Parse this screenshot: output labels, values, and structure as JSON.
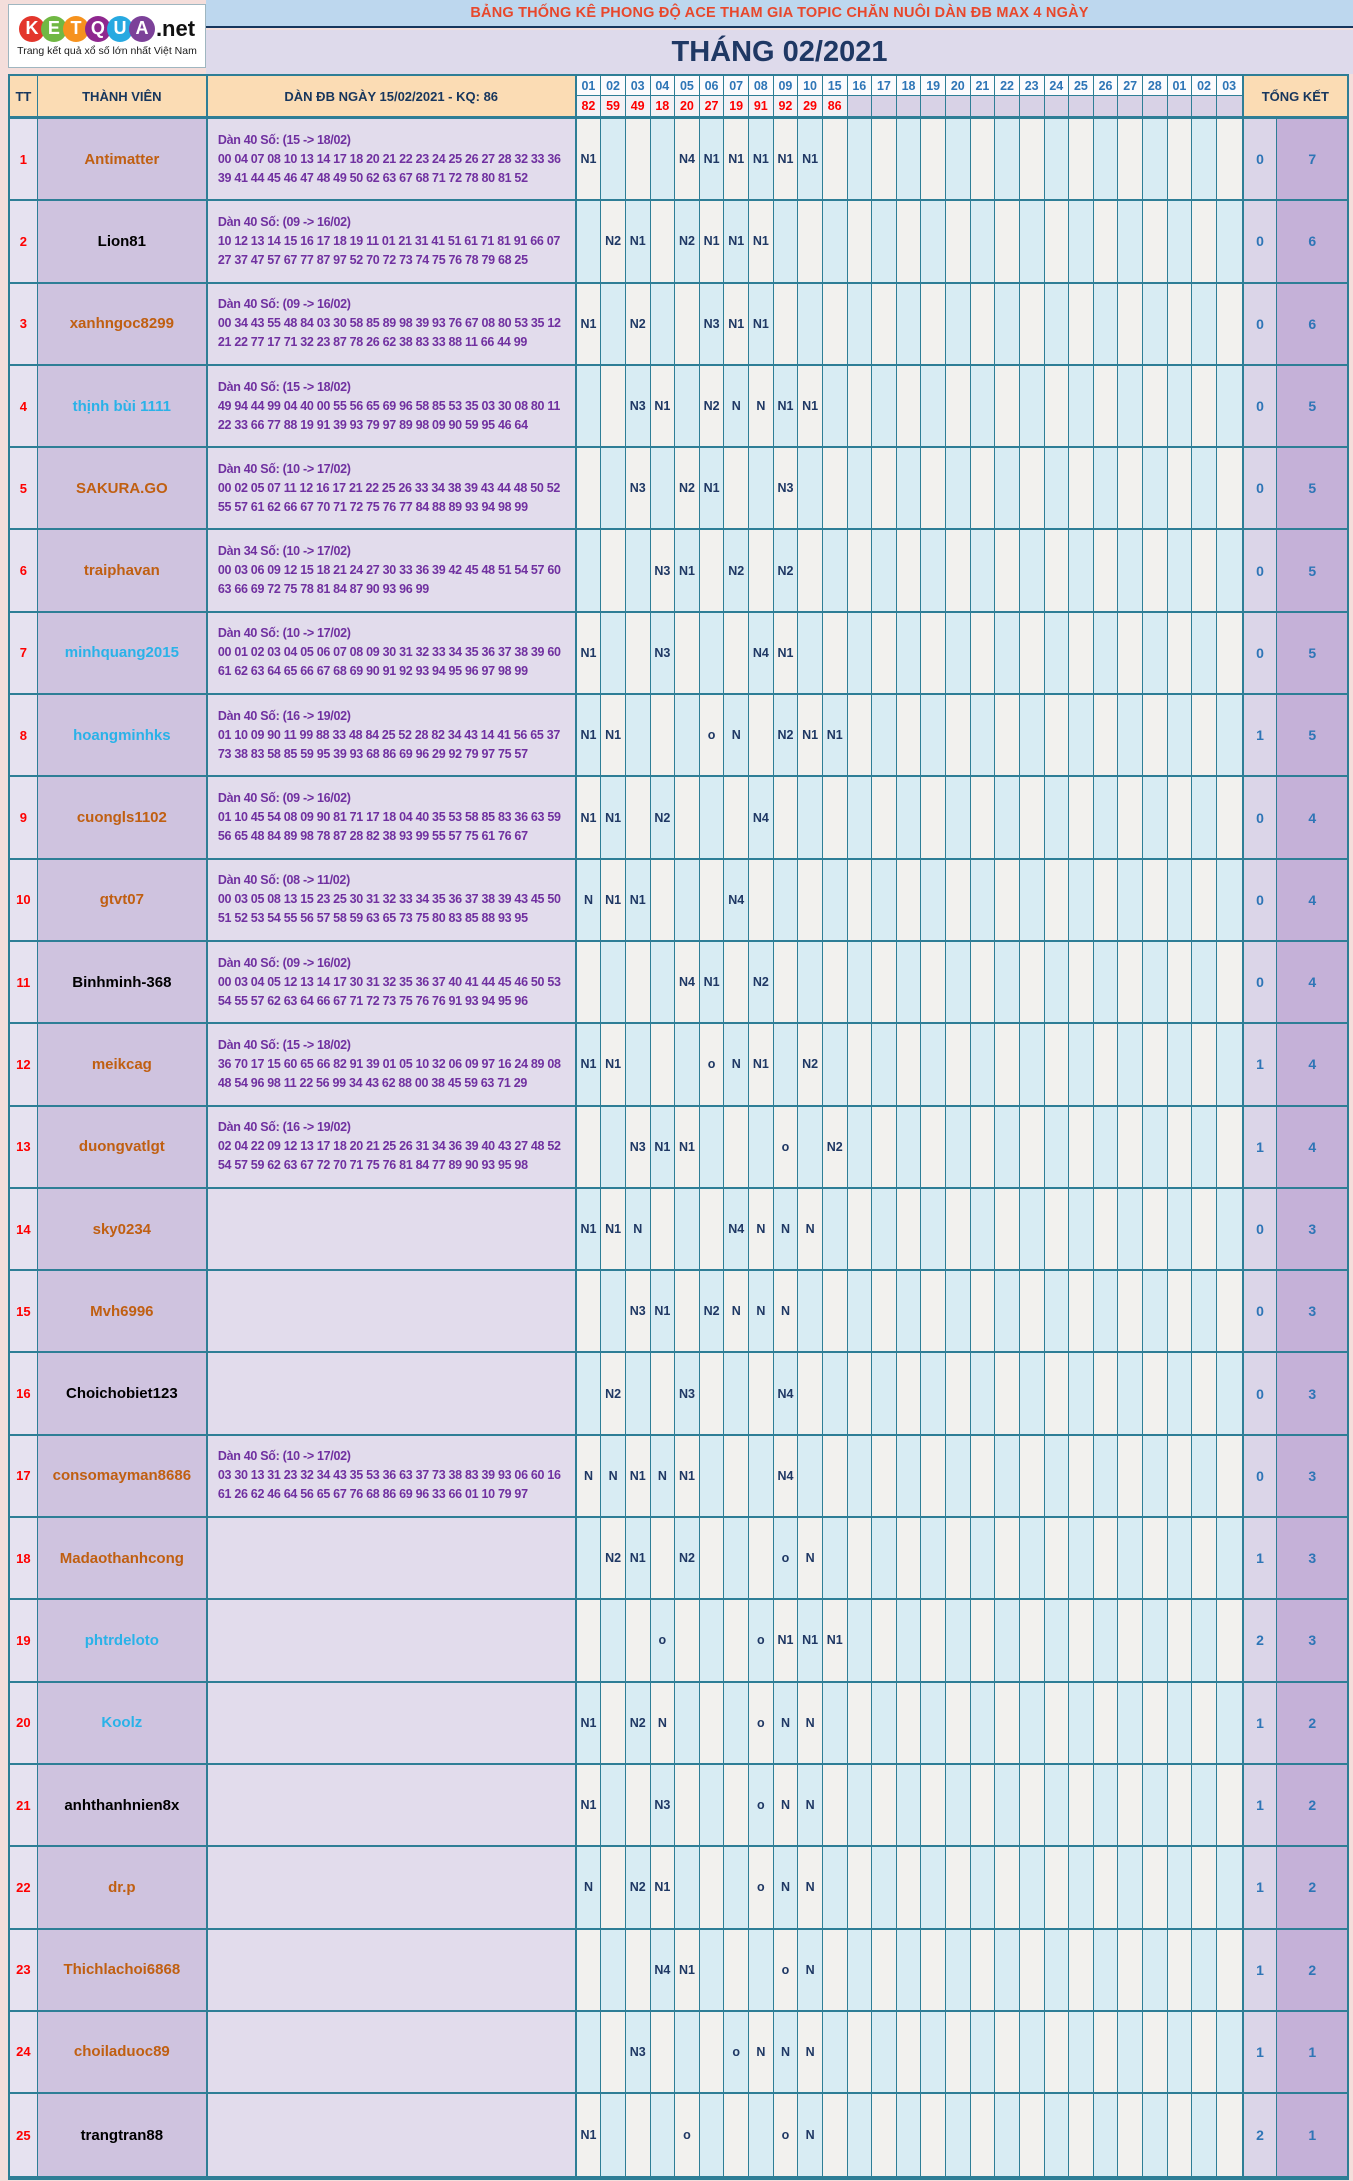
{
  "logo": {
    "letters": [
      {
        "ch": "K",
        "color": "#e3362c"
      },
      {
        "ch": "E",
        "color": "#70b843"
      },
      {
        "ch": "T",
        "color": "#f6921e"
      },
      {
        "ch": "Q",
        "color": "#8f278f"
      },
      {
        "ch": "U",
        "color": "#27a9e1"
      },
      {
        "ch": "A",
        "color": "#7c4199"
      }
    ],
    "suffix": ".net",
    "tagline": "Trang kết quả xổ số lớn nhất Việt Nam"
  },
  "banner": {
    "title": "BẢNG THỐNG KÊ PHONG ĐỘ ACE THAM GIA TOPIC CHĂN NUÔI DÀN ĐB MAX 4 NGÀY",
    "month": "THÁNG 02/2021"
  },
  "colors": {
    "accent_teal": "#2e7e96",
    "banner_blue": "#bdd7ee",
    "banner_title_red": "#e8472b",
    "navy": "#1f3864",
    "peach_header": "#fbdcb4",
    "purple_text": "#7030a0",
    "result_red": "#fe0000",
    "value_blue": "#2e75b6"
  },
  "table": {
    "headers": {
      "tt": "TT",
      "member": "THÀNH VIÊN",
      "dan": "DÀN ĐB NGÀY 15/02/2021 - KQ: 86",
      "total": "TỔNG KẾT"
    },
    "columns": [
      "01",
      "02",
      "03",
      "04",
      "05",
      "06",
      "07",
      "08",
      "09",
      "10",
      "15",
      "16",
      "17",
      "18",
      "19",
      "20",
      "21",
      "22",
      "23",
      "24",
      "25",
      "26",
      "27",
      "28",
      "01",
      "02",
      "03"
    ],
    "results": [
      "82",
      "59",
      "49",
      "18",
      "20",
      "27",
      "19",
      "91",
      "92",
      "29",
      "86",
      "",
      "",
      "",
      "",
      "",
      "",
      "",
      "",
      "",
      "",
      "",
      "",
      "",
      "",
      "",
      ""
    ],
    "rows": [
      {
        "tt": "1",
        "name": "Antimatter",
        "name_color": "orange",
        "dan_title": "Dàn 40 Số: (15 -> 18/02)",
        "dan_line1": "00 04 07 08 10 13 14 17 18 20 21 22 23 24 25 26 27 28 32 33 36",
        "dan_line2": "39 41 44 45 46 47 48 49 50 62 63 67 68 71 72 78 80 81 52",
        "cells": {
          "0": "N1",
          "4": "N4",
          "5": "N1",
          "6": "N1",
          "7": "N1",
          "8": "N1",
          "9": "N1"
        },
        "sum_miss": "0",
        "sum_win": "7"
      },
      {
        "tt": "2",
        "name": "Lion81",
        "name_color": "black",
        "dan_title": "Dàn 40 Số: (09 -> 16/02)",
        "dan_line1": "10 12 13 14 15 16 17 18 19 11 01 21 31 41 51 61 71 81 91 66 07",
        "dan_line2": "27 37 47 57 67 77 87 97 52 70 72 73 74 75 76 78 79 68 25",
        "cells": {
          "1": "N2",
          "2": "N1",
          "4": "N2",
          "5": "N1",
          "6": "N1",
          "7": "N1"
        },
        "sum_miss": "0",
        "sum_win": "6"
      },
      {
        "tt": "3",
        "name": "xanhngoc8299",
        "name_color": "orange",
        "dan_title": "Dàn 40 Số: (09 -> 16/02)",
        "dan_line1": "00 34 43 55 48 84 03 30 58 85 89 98 39 93 76 67 08 80 53 35 12",
        "dan_line2": "21 22 77 17 71 32 23 87 78 26 62 38 83 33 88 11 66 44 99",
        "cells": {
          "0": "N1",
          "2": "N2",
          "5": "N3",
          "6": "N1",
          "7": "N1"
        },
        "sum_miss": "0",
        "sum_win": "6"
      },
      {
        "tt": "4",
        "name": "thịnh bùi 1111",
        "name_color": "cyan",
        "dan_title": "Dàn 40 Số: (15 -> 18/02)",
        "dan_line1": "49 94 44 99 04 40 00 55 56 65 69 96 58 85 53 35 03 30 08 80 11",
        "dan_line2": "22 33 66 77 88 19 91 39 93 79 97 89 98 09 90 59 95 46 64",
        "cells": {
          "2": "N3",
          "3": "N1",
          "5": "N2",
          "6": "N",
          "7": "N",
          "8": "N1",
          "9": "N1"
        },
        "sum_miss": "0",
        "sum_win": "5"
      },
      {
        "tt": "5",
        "name": "SAKURA.GO",
        "name_color": "orange",
        "dan_title": "Dàn 40 Số: (10 -> 17/02)",
        "dan_line1": "00 02 05 07 11 12 16 17 21 22 25 26 33 34 38 39 43 44 48 50 52",
        "dan_line2": "55 57 61 62 66 67 70 71 72 75 76 77 84 88 89 93 94 98 99",
        "cells": {
          "2": "N3",
          "4": "N2",
          "5": "N1",
          "8": "N3"
        },
        "sum_miss": "0",
        "sum_win": "5"
      },
      {
        "tt": "6",
        "name": "traiphavan",
        "name_color": "orange",
        "dan_title": "Dàn 34 Số: (10 -> 17/02)",
        "dan_line1": "00 03 06 09 12 15 18 21 24 27 30 33 36 39 42 45 48 51 54 57 60",
        "dan_line2": "63 66 69 72 75 78 81 84 87 90 93 96 99",
        "cells": {
          "3": "N3",
          "4": "N1",
          "6": "N2",
          "8": "N2"
        },
        "sum_miss": "0",
        "sum_win": "5"
      },
      {
        "tt": "7",
        "name": "minhquang2015",
        "name_color": "cyan",
        "dan_title": "Dàn 40 Số: (10 -> 17/02)",
        "dan_line1": "00 01 02 03 04 05 06 07 08 09 30 31 32 33 34 35 36 37 38 39 60",
        "dan_line2": "61 62 63 64 65 66 67 68 69 90 91 92 93 94 95 96 97 98 99",
        "cells": {
          "0": "N1",
          "3": "N3",
          "7": "N4",
          "8": "N1"
        },
        "sum_miss": "0",
        "sum_win": "5"
      },
      {
        "tt": "8",
        "name": "hoangminhks",
        "name_color": "cyan",
        "dan_title": "Dàn 40 Số: (16 -> 19/02)",
        "dan_line1": "01 10 09 90 11 99 88 33 48 84 25 52 28 82 34 43 14 41 56 65 37",
        "dan_line2": "73 38 83 58 85 59 95 39 93 68 86 69 96 29 92 79 97 75 57",
        "cells": {
          "0": "N1",
          "1": "N1",
          "5": "o",
          "6": "N",
          "8": "N2",
          "9": "N1",
          "10": "N1"
        },
        "sum_miss": "1",
        "sum_win": "5"
      },
      {
        "tt": "9",
        "name": "cuongls1102",
        "name_color": "orange",
        "dan_title": "Dàn 40 Số: (09 -> 16/02)",
        "dan_line1": "01 10 45 54 08 09 90 81 71 17 18 04 40 35 53 58 85 83 36 63 59",
        "dan_line2": "56 65 48 84 89 98 78 87 28 82 38 93 99 55 57 75 61 76 67",
        "cells": {
          "0": "N1",
          "1": "N1",
          "3": "N2",
          "7": "N4"
        },
        "sum_miss": "0",
        "sum_win": "4"
      },
      {
        "tt": "10",
        "name": "gtvt07",
        "name_color": "orange",
        "dan_title": "Dàn 40 Số: (08 -> 11/02)",
        "dan_line1": "00 03 05 08 13 15 23 25 30 31 32 33 34 35 36 37 38 39 43 45 50",
        "dan_line2": "51 52 53 54 55 56 57 58 59 63 65 73 75 80 83 85 88 93 95",
        "cells": {
          "0": "N",
          "1": "N1",
          "2": "N1",
          "6": "N4"
        },
        "sum_miss": "0",
        "sum_win": "4"
      },
      {
        "tt": "11",
        "name": "Binhminh-368",
        "name_color": "black",
        "dan_title": "Dàn 40 Số: (09 -> 16/02)",
        "dan_line1": "00 03 04 05 12 13 14 17 30 31 32 35 36 37 40 41 44 45 46 50 53",
        "dan_line2": "54 55 57 62 63 64 66 67 71 72 73 75 76 76 91 93 94 95 96",
        "cells": {
          "4": "N4",
          "5": "N1",
          "7": "N2"
        },
        "sum_miss": "0",
        "sum_win": "4"
      },
      {
        "tt": "12",
        "name": "meikcag",
        "name_color": "orange",
        "dan_title": "Dàn 40 Số: (15 -> 18/02)",
        "dan_line1": "36 70 17 15 60 65 66 82 91 39 01 05 10 32 06 09 97 16 24 89 08",
        "dan_line2": "48 54 96 98 11 22 56 99 34 43 62 88 00 38 45 59 63 71 29",
        "cells": {
          "0": "N1",
          "1": "N1",
          "5": "o",
          "6": "N",
          "7": "N1",
          "9": "N2"
        },
        "sum_miss": "1",
        "sum_win": "4"
      },
      {
        "tt": "13",
        "name": "duongvatlgt",
        "name_color": "orange",
        "dan_title": "Dàn 40 Số: (16 -> 19/02)",
        "dan_line1": "02 04 22 09 12 13 17 18 20 21 25 26 31 34 36 39 40 43 27 48 52",
        "dan_line2": "54 57 59 62 63 67 72 70 71 75 76 81 84 77 89 90 93 95 98",
        "cells": {
          "2": "N3",
          "3": "N1",
          "4": "N1",
          "8": "o",
          "10": "N2"
        },
        "sum_miss": "1",
        "sum_win": "4"
      },
      {
        "tt": "14",
        "name": "sky0234",
        "name_color": "orange",
        "dan_title": "",
        "dan_line1": "",
        "dan_line2": "",
        "cells": {
          "0": "N1",
          "1": "N1",
          "2": "N",
          "6": "N4",
          "7": "N",
          "8": "N",
          "9": "N"
        },
        "sum_miss": "0",
        "sum_win": "3"
      },
      {
        "tt": "15",
        "name": "Mvh6996",
        "name_color": "orange",
        "dan_title": "",
        "dan_line1": "",
        "dan_line2": "",
        "cells": {
          "2": "N3",
          "3": "N1",
          "5": "N2",
          "6": "N",
          "7": "N",
          "8": "N"
        },
        "sum_miss": "0",
        "sum_win": "3"
      },
      {
        "tt": "16",
        "name": "Choichobiet123",
        "name_color": "black",
        "dan_title": "",
        "dan_line1": "",
        "dan_line2": "",
        "cells": {
          "1": "N2",
          "4": "N3",
          "8": "N4"
        },
        "sum_miss": "0",
        "sum_win": "3"
      },
      {
        "tt": "17",
        "name": "consomayman8686",
        "name_color": "orange",
        "dan_title": "Dàn 40 Số: (10 -> 17/02)",
        "dan_line1": "03 30 13 31 23 32 34 43 35 53 36 63 37 73 38 83 39 93 06 60 16",
        "dan_line2": "61 26 62 46 64 56 65 67 76 68 86 69 96 33 66 01 10 79 97",
        "cells": {
          "0": "N",
          "1": "N",
          "2": "N1",
          "3": "N",
          "4": "N1",
          "8": "N4"
        },
        "sum_miss": "0",
        "sum_win": "3"
      },
      {
        "tt": "18",
        "name": "Madaothanhcong",
        "name_color": "orange",
        "dan_title": "",
        "dan_line1": "",
        "dan_line2": "",
        "cells": {
          "1": "N2",
          "2": "N1",
          "4": "N2",
          "8": "o",
          "9": "N"
        },
        "sum_miss": "1",
        "sum_win": "3"
      },
      {
        "tt": "19",
        "name": "phtrdeloto",
        "name_color": "cyan",
        "dan_title": "",
        "dan_line1": "",
        "dan_line2": "",
        "cells": {
          "3": "o",
          "7": "o",
          "8": "N1",
          "9": "N1",
          "10": "N1"
        },
        "sum_miss": "2",
        "sum_win": "3"
      },
      {
        "tt": "20",
        "name": "Koolz",
        "name_color": "cyan",
        "dan_title": "",
        "dan_line1": "",
        "dan_line2": "",
        "cells": {
          "0": "N1",
          "2": "N2",
          "3": "N",
          "7": "o",
          "8": "N",
          "9": "N"
        },
        "sum_miss": "1",
        "sum_win": "2"
      },
      {
        "tt": "21",
        "name": "anhthanhnien8x",
        "name_color": "black",
        "dan_title": "",
        "dan_line1": "",
        "dan_line2": "",
        "cells": {
          "0": "N1",
          "3": "N3",
          "7": "o",
          "8": "N",
          "9": "N"
        },
        "sum_miss": "1",
        "sum_win": "2"
      },
      {
        "tt": "22",
        "name": "dr.p",
        "name_color": "orange",
        "dan_title": "",
        "dan_line1": "",
        "dan_line2": "",
        "cells": {
          "0": "N",
          "2": "N2",
          "3": "N1",
          "7": "o",
          "8": "N",
          "9": "N"
        },
        "sum_miss": "1",
        "sum_win": "2"
      },
      {
        "tt": "23",
        "name": "Thichlachoi6868",
        "name_color": "orange",
        "dan_title": "",
        "dan_line1": "",
        "dan_line2": "",
        "cells": {
          "3": "N4",
          "4": "N1",
          "8": "o",
          "9": "N"
        },
        "sum_miss": "1",
        "sum_win": "2"
      },
      {
        "tt": "24",
        "name": "choiladuoc89",
        "name_color": "orange",
        "dan_title": "",
        "dan_line1": "",
        "dan_line2": "",
        "cells": {
          "2": "N3",
          "6": "o",
          "7": "N",
          "8": "N",
          "9": "N"
        },
        "sum_miss": "1",
        "sum_win": "1"
      },
      {
        "tt": "25",
        "name": "trangtran88",
        "name_color": "black",
        "dan_title": "",
        "dan_line1": "",
        "dan_line2": "",
        "cells": {
          "0": "N1",
          "4": "o",
          "8": "o",
          "9": "N"
        },
        "sum_miss": "2",
        "sum_win": "1"
      }
    ]
  }
}
